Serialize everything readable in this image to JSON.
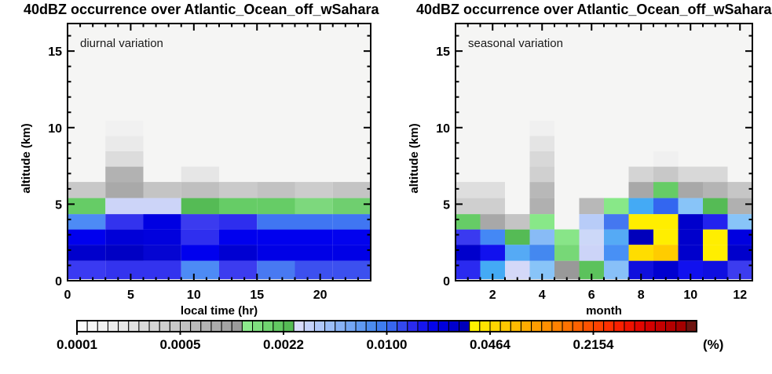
{
  "titles": {
    "left": "40dBZ occurrence over Atlantic_Ocean_off_wSahara",
    "right": "40dBZ occurrence over Atlantic_Ocean_off_wSahara"
  },
  "style": {
    "plot_background": "#f5f5f4",
    "frame_color": "#000000",
    "page_background": "#ffffff"
  },
  "chart_data": [
    {
      "type": "heatmap",
      "panel": "diurnal",
      "title": "40dBZ occurrence over Atlantic_Ocean_off_wSahara",
      "annotation": "diurnal variation",
      "xlabel": "local time (hr)",
      "ylabel": "altitude (km)",
      "xlim": [
        0,
        24
      ],
      "ylim": [
        0,
        16.8
      ],
      "x_major_ticks": [
        0,
        5,
        10,
        15,
        20
      ],
      "x_minor_step": 1,
      "y_major_ticks": [
        0,
        5,
        10,
        15
      ],
      "y_minor_step": 1,
      "x_bin_edges": [
        0,
        3,
        6,
        9,
        12,
        15,
        18,
        21,
        24
      ],
      "y_bin_edges": [
        0.1,
        1.3,
        2.35,
        3.35,
        4.35,
        5.4,
        6.45,
        7.45,
        8.45,
        9.45,
        10.45
      ],
      "value_unit": "%",
      "value_scale": "log",
      "value_range": [
        0.0001,
        1.0
      ],
      "cells_by_column": [
        [
          "#3a3af2",
          "#0000cc",
          "#0000ee",
          "#4d8bf5",
          "#66cc66",
          "#c8c8c8",
          null,
          null,
          null,
          null
        ],
        [
          "#3333ee",
          "#0000c4",
          "#0000d8",
          "#3333ee",
          "#ccd4f8",
          "#a9a9a9",
          "#b2b2b2",
          "#dcdcdc",
          "#eaeaea",
          "#f1f1f1"
        ],
        [
          "#3333ee",
          "#0505d2",
          "#0101dd",
          "#0000e2",
          "#ccd4f8",
          "#c4c4c4",
          null,
          null,
          null,
          null
        ],
        [
          "#4d8bf5",
          "#0000ee",
          "#2f2fef",
          "#3b3bef",
          "#55bb55",
          "#bfbfbf",
          "#e6e6e6",
          null,
          null,
          null
        ],
        [
          "#3c3cef",
          "#0000d2",
          "#0000ee",
          "#2e2eee",
          "#66cc66",
          "#cacaca",
          null,
          null,
          null,
          null
        ],
        [
          "#4879f2",
          "#0000e6",
          "#0000ee",
          "#4076f2",
          "#66cc66",
          "#c2c2c2",
          null,
          null,
          null,
          null
        ],
        [
          "#3c50ef",
          "#0000e6",
          "#0000ee",
          "#4076f2",
          "#7dd87d",
          "#cccccc",
          null,
          null,
          null,
          null
        ],
        [
          "#3c50ef",
          "#0000e6",
          "#0202ee",
          "#4076f2",
          "#6fcf6f",
          "#c4c4c4",
          null,
          null,
          null,
          null
        ]
      ]
    },
    {
      "type": "heatmap",
      "panel": "seasonal",
      "title": "40dBZ occurrence over Atlantic_Ocean_off_wSahara",
      "annotation": "seasonal variation",
      "xlabel": "month",
      "ylabel": "altitude (km)",
      "xlim": [
        0.5,
        12.5
      ],
      "ylim": [
        0,
        16.8
      ],
      "x_major_ticks": [
        2,
        4,
        6,
        8,
        10,
        12
      ],
      "x_minor_step": 0.5,
      "y_major_ticks": [
        0,
        5,
        10,
        15
      ],
      "y_minor_step": 1,
      "x_bin_edges": [
        0.5,
        1.5,
        2.5,
        3.5,
        4.5,
        5.5,
        6.5,
        7.5,
        8.5,
        9.5,
        10.5,
        11.5,
        12.5
      ],
      "y_bin_edges": [
        0.1,
        1.3,
        2.35,
        3.35,
        4.35,
        5.4,
        6.45,
        7.45,
        8.45,
        9.45,
        10.45
      ],
      "value_unit": "%",
      "value_scale": "log",
      "value_range": [
        0.0001,
        1.0
      ],
      "cells_by_column": [
        [
          "#2a2af0",
          "#0000cc",
          "#3a3af0",
          "#66cc66",
          "#cfcfcf",
          "#dedede",
          null,
          null,
          null,
          null
        ],
        [
          "#44aaf5",
          "#1111ee",
          "#4488f5",
          "#a8a8a8",
          "#cfcfcf",
          "#dedede",
          null,
          null,
          null,
          null
        ],
        [
          "#d4d8f8",
          "#55aaf5",
          "#55bb55",
          "#c4c4c4",
          null,
          null,
          null,
          null,
          null,
          null
        ],
        [
          "#88c4f8",
          "#4488f0",
          "#88bbf6",
          "#88e888",
          "#b0b0b0",
          "#b8b8b8",
          "#d0d0d0",
          "#d8d8d8",
          "#e4e4e4",
          "#f0f0f0"
        ],
        [
          "#999999",
          "#77d877",
          "#88e588",
          null,
          null,
          null,
          null,
          null,
          null,
          null
        ],
        [
          "#5cc25c",
          "#ccd4f8",
          "#ccd8f8",
          "#b8ccf8",
          "#b8b8b8",
          null,
          null,
          null,
          null,
          null
        ],
        [
          "#88c0f8",
          "#4890f5",
          "#55aaf5",
          "#4477f0",
          "#88e888",
          null,
          null,
          null,
          null,
          null
        ],
        [
          "#0f0fdd",
          "#ffdd00",
          "#0000bb",
          "#ffee00",
          "#44aaf5",
          "#a8a8a8",
          "#d4d4d4",
          null,
          null,
          null
        ],
        [
          "#0000d0",
          "#ffcc00",
          "#ffee00",
          "#ffee00",
          "#3366f0",
          "#66cc66",
          "#c8c8c8",
          "#f0f0f0",
          null,
          null
        ],
        [
          "#1111ee",
          "#0000cc",
          "#0000cc",
          "#0000cc",
          "#88c4f8",
          "#a8a8a8",
          "#d8d8d8",
          null,
          null,
          null
        ],
        [
          "#0f0fe0",
          "#ffee00",
          "#ffee00",
          "#2222ee",
          "#55bb55",
          "#b4b4b4",
          "#d8d8d8",
          null,
          null,
          null
        ],
        [
          "#3c3cef",
          "#0000cc",
          "#0000e0",
          "#88c4f8",
          "#b0b0b0",
          "#c6c6c6",
          null,
          null,
          null,
          null
        ]
      ]
    }
  ],
  "colorbar": {
    "labels": [
      "0.0001",
      "0.0005",
      "0.0022",
      "0.0100",
      "0.0464",
      "0.2154"
    ],
    "unit": "(%)",
    "scale": "log",
    "range_pct": [
      0.0001,
      1.0
    ],
    "palette": [
      "#fbfbfb",
      "#f6f6f6",
      "#f1f1f1",
      "#ececec",
      "#e7e7e7",
      "#e1e1e1",
      "#dbdbdb",
      "#d5d5d5",
      "#cfcfcf",
      "#c9c9c9",
      "#c2c2c2",
      "#bbbbbb",
      "#b4b4b4",
      "#acacac",
      "#a3a3a3",
      "#9a9a9a",
      "#8ce98c",
      "#7ede7e",
      "#70d470",
      "#62c862",
      "#55bb55",
      "#d8dcfb",
      "#c4d2fa",
      "#b0c8f9",
      "#9cbef8",
      "#88b2f6",
      "#74a6f4",
      "#609af2",
      "#4c8cf0",
      "#3f7df0",
      "#3866f0",
      "#3348ef",
      "#2a2aee",
      "#1616ee",
      "#0505ea",
      "#0000dd",
      "#0000cc",
      "#0000bb",
      "#fff200",
      "#ffe400",
      "#ffd600",
      "#ffc800",
      "#ffba00",
      "#ffac00",
      "#ff9e00",
      "#ff9000",
      "#ff8200",
      "#ff7200",
      "#ff6200",
      "#ff5200",
      "#ff4200",
      "#ff3000",
      "#fa2000",
      "#ef1200",
      "#e30600",
      "#d40000",
      "#c40000",
      "#b40000",
      "#a40000",
      "#6e1410"
    ]
  }
}
